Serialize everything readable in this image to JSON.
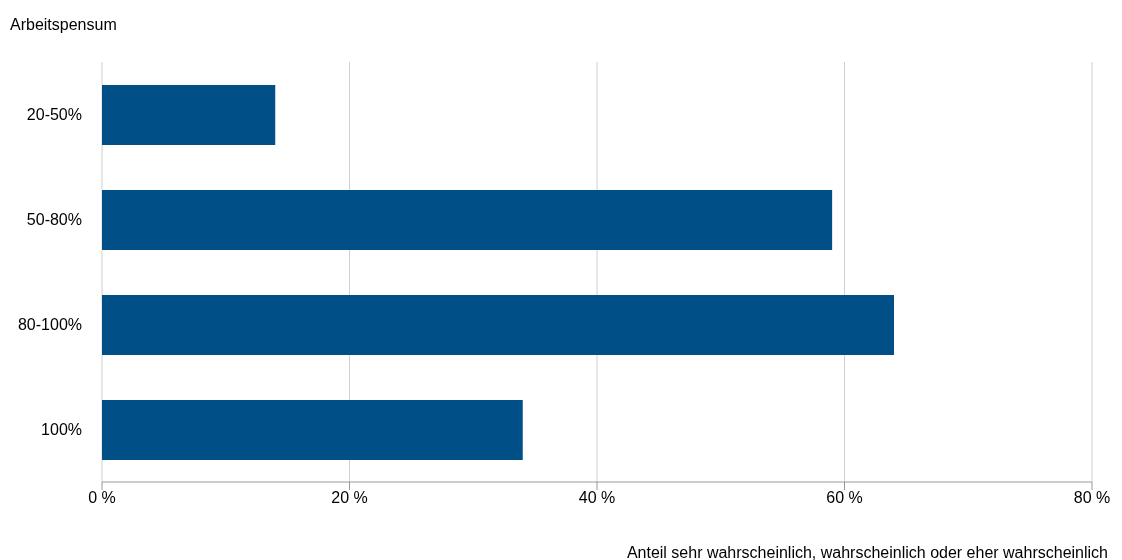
{
  "chart_data": {
    "type": "bar",
    "orientation": "horizontal",
    "ylabel": "Arbeitspensum",
    "xlabel": "Anteil sehr wahrscheinlich, wahrscheinlich oder eher wahrscheinlich",
    "categories": [
      "20-50%",
      "50-80%",
      "80-100%",
      "100%"
    ],
    "values": [
      14,
      59,
      64,
      34
    ],
    "color": "#004f87",
    "xlim": [
      0,
      80
    ],
    "xticks": [
      {
        "value": 0,
        "label": "0 %"
      },
      {
        "value": 20,
        "label": "20 %"
      },
      {
        "value": 40,
        "label": "40 %"
      },
      {
        "value": 60,
        "label": "60 %"
      },
      {
        "value": 80,
        "label": "80 %"
      }
    ],
    "grid": "x"
  }
}
